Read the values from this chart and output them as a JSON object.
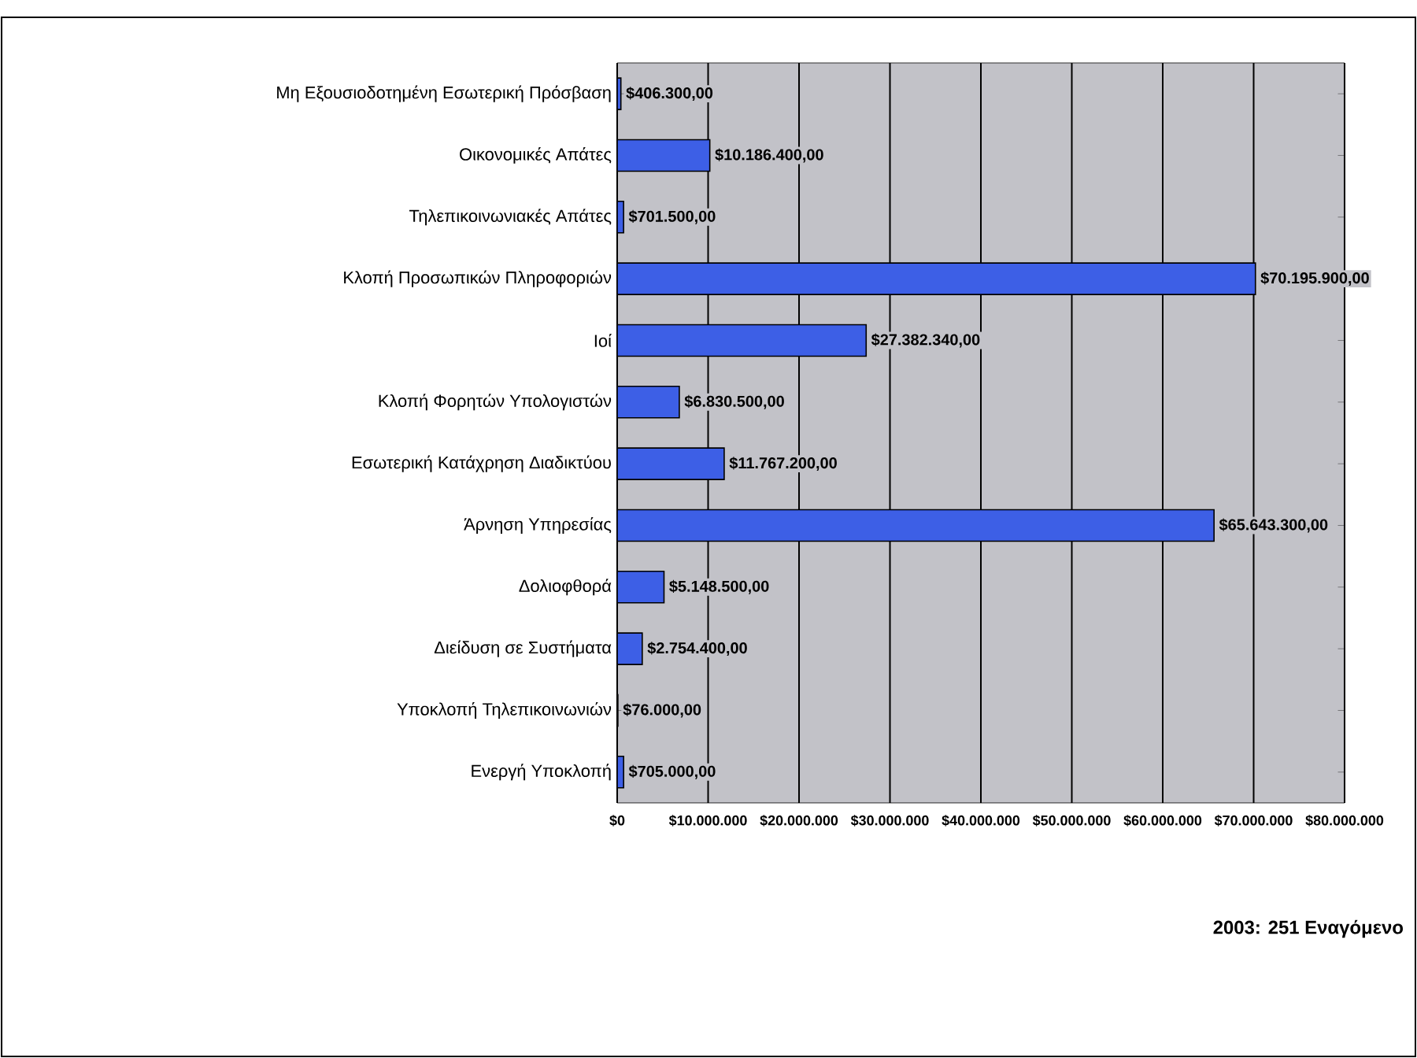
{
  "chart_data": {
    "type": "bar",
    "orientation": "horizontal",
    "categories": [
      "Μη Εξουσιοδοτημένη Εσωτερική Πρόσβαση",
      "Οικονομικές Απάτες",
      "Τηλεπικοινωνιακές Απάτες",
      "Κλοπή Προσωπικών Πληροφοριών",
      "Ιοί",
      "Κλοπή Φορητών Υπολογιστών",
      "Εσωτερική Κατάχρηση Διαδικτύου",
      "Άρνηση Υπηρεσίας",
      "Δολιοφθορά",
      "Διείδυση σε Συστήματα",
      "Υποκλοπή Τηλεπικοινωνιών",
      "Ενεργή Υποκλοπή"
    ],
    "values": [
      406300,
      10186400,
      701500,
      70195900,
      27382340,
      6830500,
      11767200,
      65643300,
      5148500,
      2754400,
      76000,
      705000
    ],
    "value_labels": [
      "$406.300,00",
      "$10.186.400,00",
      "$701.500,00",
      "$70.195.900,00",
      "$27.382.340,00",
      "$6.830.500,00",
      "$11.767.200,00",
      "$65.643.300,00",
      "$5.148.500,00",
      "$2.754.400,00",
      "$76.000,00",
      "$705.000,00"
    ],
    "color": "#3d5fe6",
    "xlim": [
      0,
      80000000
    ],
    "xticks": [
      {
        "value": 0,
        "label": "$0"
      },
      {
        "value": 10000000,
        "label": "$10.000.000"
      },
      {
        "value": 20000000,
        "label": "$20.000.000"
      },
      {
        "value": 30000000,
        "label": "$30.000.000"
      },
      {
        "value": 40000000,
        "label": "$40.000.000"
      },
      {
        "value": 50000000,
        "label": "$50.000.000"
      },
      {
        "value": 60000000,
        "label": "$60.000.000"
      },
      {
        "value": 70000000,
        "label": "$70.000.000"
      },
      {
        "value": 80000000,
        "label": "$80.000.000"
      }
    ],
    "grid": "x",
    "annotations": [
      "2003: 251 Εναγόμενο"
    ]
  }
}
